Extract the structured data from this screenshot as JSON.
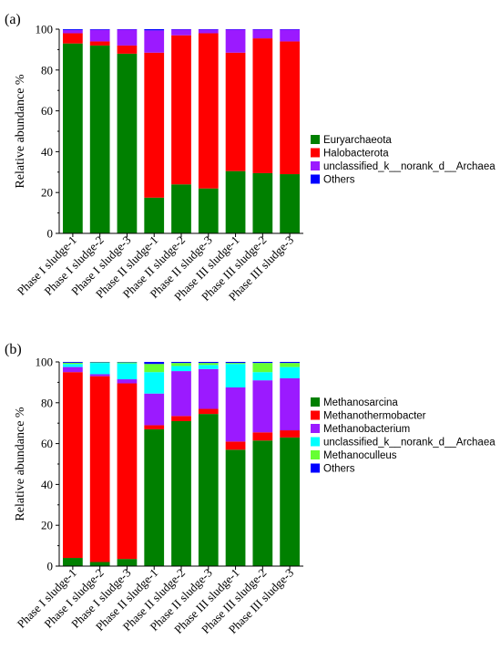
{
  "colors": {
    "green": "#008000",
    "red": "#ff0000",
    "purple": "#9b1aff",
    "blue": "#0000ff",
    "cyan": "#00ffff",
    "lightgreen": "#66ff33"
  },
  "chart_data": [
    {
      "type": "bar",
      "stacked": true,
      "panel_label": "(a)",
      "ylabel": "Relative abundance %",
      "ylim": [
        0,
        100
      ],
      "yticks": [
        0,
        20,
        40,
        60,
        80,
        100
      ],
      "grid": false,
      "legend_position": "right",
      "categories": [
        "Phase I sludge-1",
        "Phase I sludge-2",
        "Phase I sludge-3",
        "Phase II sludge-1",
        "Phase II sludge-2",
        "Phase II sludge-3",
        "Phase III sludge-1",
        "Phase III sludge-2",
        "Phase III sludge-3"
      ],
      "series": [
        {
          "name": "Euryarchaeota",
          "color": "green",
          "values": [
            93,
            92,
            88,
            17.5,
            24,
            22,
            30.5,
            29.5,
            29
          ]
        },
        {
          "name": "Halobacterota",
          "color": "red",
          "values": [
            5,
            2,
            4,
            71,
            73,
            76,
            58,
            66,
            65
          ]
        },
        {
          "name": "unclassified_k__norank_d__Archaea",
          "color": "purple",
          "values": [
            1.6,
            5.7,
            7.8,
            10.9,
            2.8,
            1.8,
            11.3,
            4.3,
            5.8
          ]
        },
        {
          "name": "Others",
          "color": "blue",
          "values": [
            0.4,
            0.3,
            0.2,
            0.6,
            0.2,
            0.2,
            0.2,
            0.2,
            0.2
          ]
        }
      ]
    },
    {
      "type": "bar",
      "stacked": true,
      "panel_label": "(b)",
      "ylabel": "Relative abundance %",
      "ylim": [
        0,
        100
      ],
      "yticks": [
        0,
        20,
        40,
        60,
        80,
        100
      ],
      "grid": false,
      "legend_position": "right",
      "categories": [
        "Phase I sludge-1",
        "Phase I sludge-2",
        "Phase I sludge-3",
        "Phase II sludge-1",
        "Phase II sludge-2",
        "Phase II sludge-3",
        "Phase III sludge-1",
        "Phase III sludge-2",
        "Phase III sludge-3"
      ],
      "series": [
        {
          "name": "Methanosarcina",
          "color": "green",
          "values": [
            4,
            2,
            3.5,
            67,
            71,
            74.5,
            57,
            61.5,
            63
          ]
        },
        {
          "name": "Methanothermobacter",
          "color": "red",
          "values": [
            91,
            91,
            86,
            2,
            2.5,
            2.5,
            4,
            4,
            3.5
          ]
        },
        {
          "name": "Methanobacterium",
          "color": "purple",
          "values": [
            2.5,
            1,
            2,
            15.5,
            22,
            19.5,
            26.5,
            25.5,
            25.5
          ]
        },
        {
          "name": "unclassified_k__norank_d__Archaea",
          "color": "cyan",
          "values": [
            1.5,
            5.5,
            7.8,
            10.5,
            2.5,
            2,
            11.5,
            4,
            5.5
          ]
        },
        {
          "name": "Methanoculleus",
          "color": "lightgreen",
          "values": [
            0.6,
            0.3,
            0.5,
            4,
            1.5,
            1,
            0.5,
            4.5,
            2
          ]
        },
        {
          "name": "Others",
          "color": "blue",
          "values": [
            0.4,
            0.2,
            0.2,
            1,
            0.5,
            0.5,
            0.5,
            0.5,
            0.5
          ]
        }
      ]
    }
  ]
}
